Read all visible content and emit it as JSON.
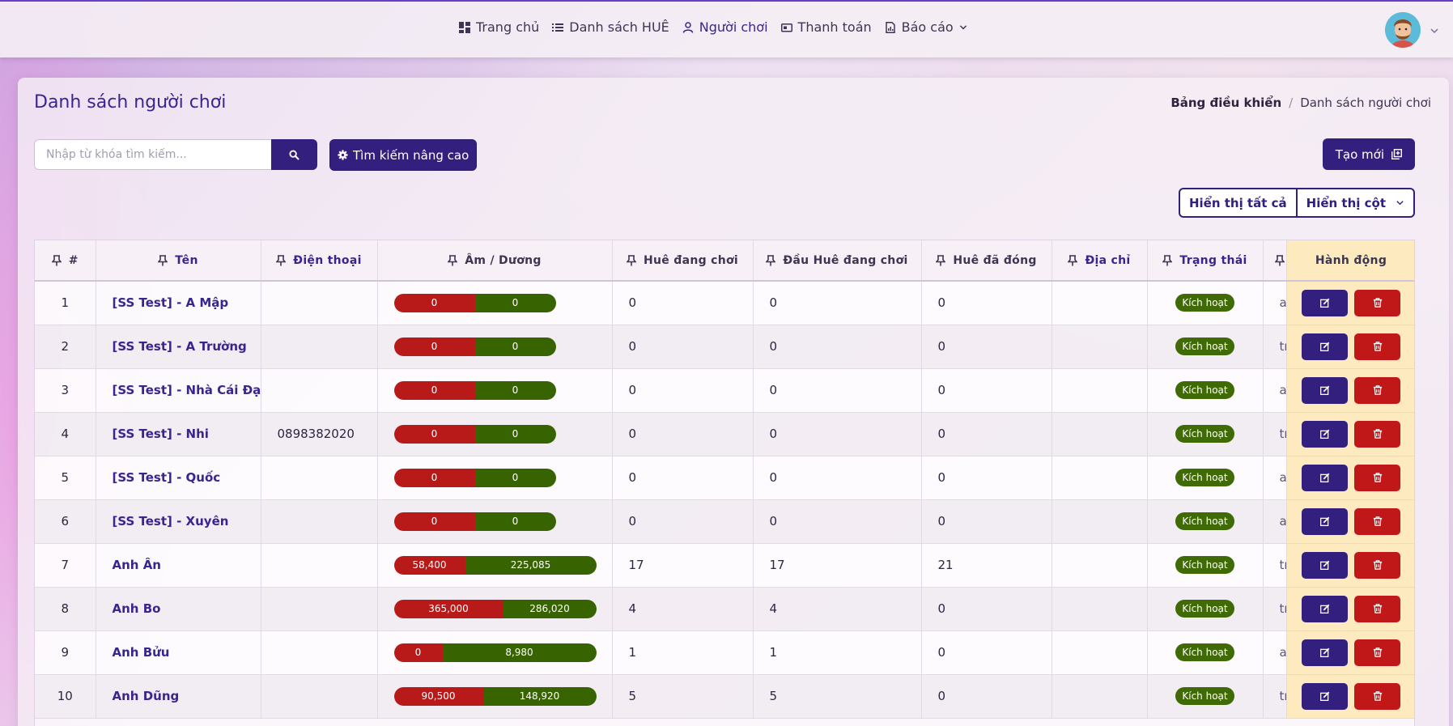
{
  "nav": {
    "items": [
      {
        "label": "Trang chủ",
        "icon": "dashboard-icon",
        "active": false
      },
      {
        "label": "Danh sách HUÊ",
        "icon": "list-icon",
        "active": false
      },
      {
        "label": "Người chơi",
        "icon": "user-icon",
        "active": true
      },
      {
        "label": "Thanh toán",
        "icon": "payment-icon",
        "active": false
      },
      {
        "label": "Báo cáo",
        "icon": "report-icon",
        "active": false,
        "dropdown": true
      }
    ]
  },
  "page": {
    "title": "Danh sách người chơi",
    "breadcrumb": {
      "home": "Bảng điều khiển",
      "current": "Danh sách người chơi"
    }
  },
  "search": {
    "placeholder": "Nhập từ khóa tìm kiếm...",
    "value": ""
  },
  "buttons": {
    "advanced_search": "Tìm kiếm nâng cao",
    "create": "Tạo mới",
    "show_all": "Hiển thị tất cả",
    "show_columns": "Hiển thị cột"
  },
  "table": {
    "headers": {
      "index": "#",
      "name": "Tên",
      "phone": "Điện thoại",
      "balance": "Âm / Dương",
      "hue_playing": "Huê đang chơi",
      "dau_hue_playing": "Đầu Huê đang chơi",
      "hue_closed": "Huê đã đóng",
      "address": "Địa chỉ",
      "status": "Trạng thái",
      "actions": "Hành động"
    },
    "rows": [
      {
        "index": "1",
        "name": "[SS Test] - A Mập",
        "phone": "",
        "neg": "0",
        "pos": "0",
        "neg_frac": 0.5,
        "bar_max": true,
        "hue_playing": "0",
        "dau_hue_playing": "0",
        "hue_closed": "0",
        "address": "",
        "status": "Kích hoạt",
        "extra": "a"
      },
      {
        "index": "2",
        "name": "[SS Test] - A Trường",
        "phone": "",
        "neg": "0",
        "pos": "0",
        "neg_frac": 0.5,
        "hue_playing": "0",
        "dau_hue_playing": "0",
        "hue_closed": "0",
        "address": "",
        "status": "Kích hoạt",
        "extra": "tr"
      },
      {
        "index": "3",
        "name": "[SS Test] - Nhà Cái Đạt",
        "phone": "",
        "neg": "0",
        "pos": "0",
        "neg_frac": 0.5,
        "hue_playing": "0",
        "dau_hue_playing": "0",
        "hue_closed": "0",
        "address": "",
        "status": "Kích hoạt",
        "extra": "a"
      },
      {
        "index": "4",
        "name": "[SS Test] - Nhi",
        "phone": "0898382020",
        "neg": "0",
        "pos": "0",
        "neg_frac": 0.5,
        "hue_playing": "0",
        "dau_hue_playing": "0",
        "hue_closed": "0",
        "address": "",
        "status": "Kích hoạt",
        "extra": "tr"
      },
      {
        "index": "5",
        "name": "[SS Test] - Quốc",
        "phone": "",
        "neg": "0",
        "pos": "0",
        "neg_frac": 0.5,
        "hue_playing": "0",
        "dau_hue_playing": "0",
        "hue_closed": "0",
        "address": "",
        "status": "Kích hoạt",
        "extra": "a"
      },
      {
        "index": "6",
        "name": "[SS Test] - Xuyên",
        "phone": "",
        "neg": "0",
        "pos": "0",
        "neg_frac": 0.5,
        "hue_playing": "0",
        "dau_hue_playing": "0",
        "hue_closed": "0",
        "address": "",
        "status": "Kích hoạt",
        "extra": "a"
      },
      {
        "index": "7",
        "name": "Anh Ân",
        "phone": "",
        "neg": "58,400",
        "pos": "225,085",
        "neg_frac": 0.35,
        "hue_playing": "17",
        "dau_hue_playing": "17",
        "hue_closed": "21",
        "address": "",
        "status": "Kích hoạt",
        "extra": "tr"
      },
      {
        "index": "8",
        "name": "Anh Bo",
        "phone": "",
        "neg": "365,000",
        "pos": "286,020",
        "neg_frac": 0.54,
        "hue_playing": "4",
        "dau_hue_playing": "4",
        "hue_closed": "0",
        "address": "",
        "status": "Kích hoạt",
        "extra": "tr"
      },
      {
        "index": "9",
        "name": "Anh Bửu",
        "phone": "",
        "neg": "0",
        "pos": "8,980",
        "neg_frac": 0.24,
        "hue_playing": "1",
        "dau_hue_playing": "1",
        "hue_closed": "0",
        "address": "",
        "status": "Kích hoạt",
        "extra": "a"
      },
      {
        "index": "10",
        "name": "Anh Dũng",
        "phone": "",
        "neg": "90,500",
        "pos": "148,920",
        "neg_frac": 0.44,
        "hue_playing": "5",
        "dau_hue_playing": "5",
        "hue_closed": "0",
        "address": "",
        "status": "Kích hoạt",
        "extra": "tr"
      }
    ]
  }
}
